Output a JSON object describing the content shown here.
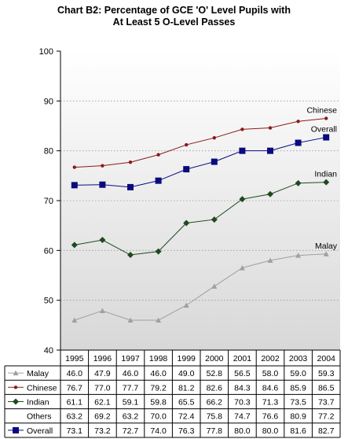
{
  "chart_data": {
    "type": "line",
    "title_line1": "Chart B2: Percentage of GCE 'O' Level Pupils with",
    "title_line2": "At Least 5 O-Level Passes",
    "categories": [
      "1995",
      "1996",
      "1997",
      "1998",
      "1999",
      "2000",
      "2001",
      "2002",
      "2003",
      "2004"
    ],
    "ylim": [
      40,
      100
    ],
    "yticks": [
      "40",
      "50",
      "60",
      "70",
      "80",
      "90",
      "100"
    ],
    "grid": true,
    "series": [
      {
        "name": "Malay",
        "values": [
          46.0,
          47.9,
          46.0,
          46.0,
          49.0,
          52.8,
          56.5,
          58.0,
          59.0,
          59.3
        ],
        "display": [
          "46.0",
          "47.9",
          "46.0",
          "46.0",
          "49.0",
          "52.8",
          "56.5",
          "58.0",
          "59.0",
          "59.3"
        ],
        "color": "#a0a0a0",
        "marker": "triangle",
        "plotted": true
      },
      {
        "name": "Chinese",
        "values": [
          76.7,
          77.0,
          77.7,
          79.2,
          81.2,
          82.6,
          84.3,
          84.6,
          85.9,
          86.5
        ],
        "display": [
          "76.7",
          "77.0",
          "77.7",
          "79.2",
          "81.2",
          "82.6",
          "84.3",
          "84.6",
          "85.9",
          "86.5"
        ],
        "color": "#8b1a1a",
        "marker": "dot",
        "plotted": true
      },
      {
        "name": "Indian",
        "values": [
          61.1,
          62.1,
          59.1,
          59.8,
          65.5,
          66.2,
          70.3,
          71.3,
          73.5,
          73.7
        ],
        "display": [
          "61.1",
          "62.1",
          "59.1",
          "59.8",
          "65.5",
          "66.2",
          "70.3",
          "71.3",
          "73.5",
          "73.7"
        ],
        "color": "#1f4a1f",
        "marker": "diamond",
        "plotted": true
      },
      {
        "name": "Others",
        "values": [
          63.2,
          69.2,
          63.2,
          70.0,
          72.4,
          75.8,
          74.7,
          76.6,
          80.9,
          77.2
        ],
        "display": [
          "63.2",
          "69.2",
          "63.2",
          "70.0",
          "72.4",
          "75.8",
          "74.7",
          "76.6",
          "80.9",
          "77.2"
        ],
        "color": "#000000",
        "marker": "none",
        "plotted": false
      },
      {
        "name": "Overall",
        "values": [
          73.1,
          73.2,
          72.7,
          74.0,
          76.3,
          77.8,
          80.0,
          80.0,
          81.6,
          82.7
        ],
        "display": [
          "73.1",
          "73.2",
          "72.7",
          "74.0",
          "76.3",
          "77.8",
          "80.0",
          "80.0",
          "81.6",
          "82.7"
        ],
        "color": "#0a0a80",
        "marker": "square",
        "plotted": true
      }
    ]
  }
}
